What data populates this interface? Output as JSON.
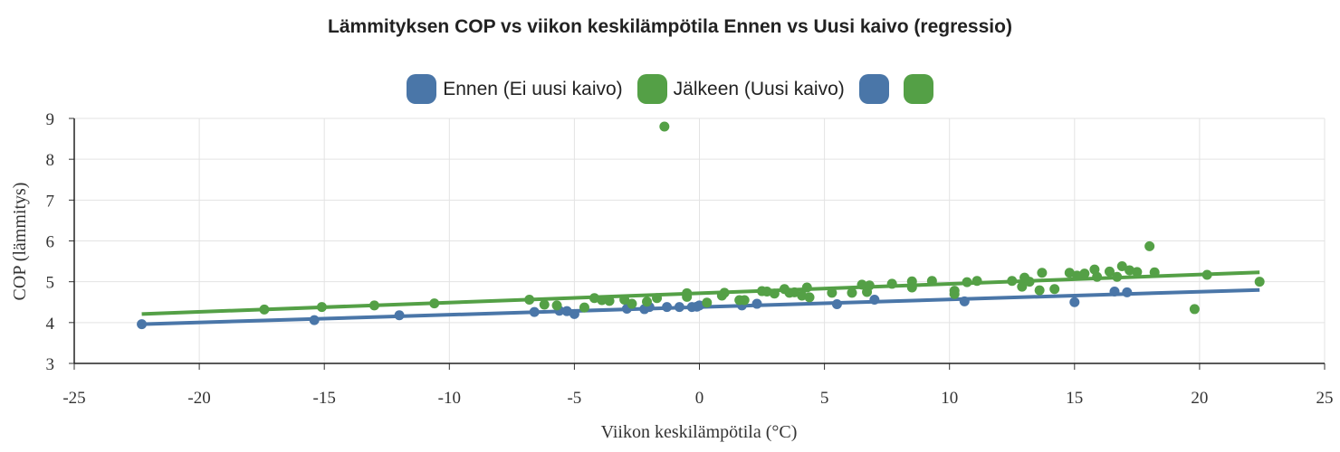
{
  "chart_data": {
    "type": "scatter",
    "title": "Lämmityksen COP vs viikon keskilämpötila Ennen vs Uusi kaivo (regressio)",
    "xlabel": "Viikon keskilämpötila (°C)",
    "ylabel": "COP (lämmitys)",
    "xlim": [
      -25,
      25
    ],
    "ylim": [
      3,
      9
    ],
    "xticks": [
      -25,
      -20,
      -15,
      -10,
      -5,
      0,
      5,
      10,
      15,
      20,
      25
    ],
    "yticks": [
      3,
      4,
      5,
      6,
      7,
      8,
      9
    ],
    "grid": true,
    "legend_position": "top",
    "legend": [
      {
        "label": "Ennen (Ei uusi kaivo)",
        "color": "#4a76a8"
      },
      {
        "label": "Jälkeen (Uusi kaivo)",
        "color": "#54a046"
      },
      {
        "label": "",
        "color": "#4a76a8"
      },
      {
        "label": "",
        "color": "#54a046"
      }
    ],
    "series": [
      {
        "name": "Ennen (Ei uusi kaivo)",
        "kind": "scatter",
        "color": "#4a76a8",
        "points": [
          [
            -22.3,
            3.96
          ],
          [
            -15.4,
            4.06
          ],
          [
            -12.0,
            4.18
          ],
          [
            -6.6,
            4.26
          ],
          [
            -5.6,
            4.29
          ],
          [
            -5.3,
            4.28
          ],
          [
            -5.0,
            4.21
          ],
          [
            -2.9,
            4.34
          ],
          [
            -2.2,
            4.33
          ],
          [
            -2.0,
            4.38
          ],
          [
            -1.3,
            4.38
          ],
          [
            -0.8,
            4.38
          ],
          [
            -0.3,
            4.38
          ],
          [
            -0.1,
            4.39
          ],
          [
            0.0,
            4.42
          ],
          [
            1.7,
            4.42
          ],
          [
            2.3,
            4.46
          ],
          [
            5.5,
            4.45
          ],
          [
            7.0,
            4.56
          ],
          [
            10.6,
            4.52
          ],
          [
            15.0,
            4.5
          ],
          [
            16.6,
            4.76
          ],
          [
            17.1,
            4.74
          ]
        ]
      },
      {
        "name": "Jälkeen (Uusi kaivo)",
        "kind": "scatter",
        "color": "#54a046",
        "points": [
          [
            -17.4,
            4.32
          ],
          [
            -15.1,
            4.38
          ],
          [
            -13.0,
            4.42
          ],
          [
            -10.6,
            4.47
          ],
          [
            -6.8,
            4.56
          ],
          [
            -6.2,
            4.44
          ],
          [
            -5.7,
            4.42
          ],
          [
            -4.6,
            4.37
          ],
          [
            -4.2,
            4.6
          ],
          [
            -3.9,
            4.55
          ],
          [
            -3.6,
            4.53
          ],
          [
            -3.0,
            4.56
          ],
          [
            -2.7,
            4.46
          ],
          [
            -2.1,
            4.51
          ],
          [
            -1.7,
            4.6
          ],
          [
            -1.4,
            8.8
          ],
          [
            -0.5,
            4.72
          ],
          [
            -0.5,
            4.63
          ],
          [
            0.3,
            4.49
          ],
          [
            0.9,
            4.66
          ],
          [
            1.0,
            4.73
          ],
          [
            1.6,
            4.55
          ],
          [
            1.8,
            4.55
          ],
          [
            2.5,
            4.77
          ],
          [
            2.7,
            4.76
          ],
          [
            3.0,
            4.71
          ],
          [
            3.4,
            4.82
          ],
          [
            3.6,
            4.73
          ],
          [
            3.8,
            4.74
          ],
          [
            4.1,
            4.66
          ],
          [
            4.3,
            4.86
          ],
          [
            4.4,
            4.62
          ],
          [
            5.3,
            4.73
          ],
          [
            6.1,
            4.73
          ],
          [
            6.5,
            4.93
          ],
          [
            6.7,
            4.75
          ],
          [
            6.8,
            4.91
          ],
          [
            7.7,
            4.95
          ],
          [
            8.5,
            5.01
          ],
          [
            8.5,
            4.86
          ],
          [
            9.3,
            5.02
          ],
          [
            10.2,
            4.78
          ],
          [
            10.2,
            4.7
          ],
          [
            10.7,
            4.99
          ],
          [
            11.1,
            5.02
          ],
          [
            12.5,
            5.02
          ],
          [
            12.9,
            4.88
          ],
          [
            13.0,
            5.1
          ],
          [
            13.2,
            5.0
          ],
          [
            13.6,
            4.79
          ],
          [
            13.7,
            5.22
          ],
          [
            14.2,
            4.82
          ],
          [
            14.8,
            5.22
          ],
          [
            15.1,
            5.15
          ],
          [
            15.4,
            5.2
          ],
          [
            15.8,
            5.3
          ],
          [
            15.9,
            5.12
          ],
          [
            16.4,
            5.25
          ],
          [
            16.7,
            5.12
          ],
          [
            16.9,
            5.38
          ],
          [
            17.2,
            5.28
          ],
          [
            17.5,
            5.24
          ],
          [
            18.0,
            5.87
          ],
          [
            18.2,
            5.23
          ],
          [
            19.8,
            4.33
          ],
          [
            20.3,
            5.17
          ],
          [
            22.4,
            5.0
          ]
        ]
      },
      {
        "name": "",
        "kind": "line",
        "color": "#4a76a8",
        "points": [
          [
            -22.3,
            3.96
          ],
          [
            22.4,
            4.8
          ]
        ]
      },
      {
        "name": "",
        "kind": "line",
        "color": "#54a046",
        "points": [
          [
            -22.3,
            4.21
          ],
          [
            22.4,
            5.23
          ]
        ]
      }
    ]
  }
}
